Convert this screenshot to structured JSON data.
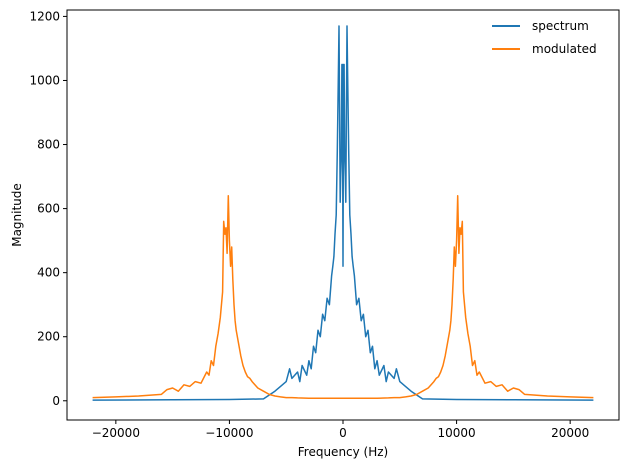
{
  "chart_data": {
    "type": "line",
    "title": "",
    "xlabel": "Frequency (Hz)",
    "ylabel": "Magnitude",
    "xlim": [
      -24300,
      24300
    ],
    "ylim": [
      -60,
      1220
    ],
    "xticks": [
      -20000,
      -10000,
      0,
      10000,
      20000
    ],
    "yticks": [
      0,
      200,
      400,
      600,
      800,
      1000,
      1200
    ],
    "grid": false,
    "legend": "top-right",
    "series": [
      {
        "name": "spectrum",
        "color": "#1f77b4",
        "x": [
          -22050,
          -15000,
          -10000,
          -7000,
          -6000,
          -5500,
          -5000,
          -4700,
          -4500,
          -4000,
          -3800,
          -3600,
          -3200,
          -3000,
          -2800,
          -2600,
          -2400,
          -2200,
          -2000,
          -1800,
          -1600,
          -1400,
          -1200,
          -1000,
          -900,
          -800,
          -700,
          -600,
          -500,
          -400,
          -350,
          -300,
          -250,
          -200,
          -150,
          -100,
          -50,
          0,
          50,
          100,
          150,
          200,
          250,
          300,
          350,
          400,
          500,
          600,
          700,
          800,
          900,
          1000,
          1200,
          1400,
          1600,
          1800,
          2000,
          2200,
          2400,
          2600,
          2800,
          3000,
          3200,
          3600,
          3800,
          4000,
          4500,
          4700,
          5000,
          5500,
          6000,
          7000,
          10000,
          15000,
          22050
        ],
        "y": [
          2,
          3,
          4,
          6,
          30,
          45,
          60,
          100,
          70,
          90,
          60,
          110,
          80,
          125,
          100,
          170,
          150,
          220,
          200,
          270,
          250,
          320,
          300,
          390,
          420,
          450,
          520,
          580,
          780,
          1050,
          1170,
          900,
          620,
          700,
          760,
          1050,
          1050,
          420,
          1050,
          1050,
          760,
          700,
          620,
          900,
          1170,
          1050,
          780,
          580,
          520,
          450,
          420,
          390,
          300,
          320,
          250,
          270,
          200,
          220,
          150,
          170,
          100,
          125,
          80,
          110,
          60,
          90,
          70,
          100,
          60,
          45,
          30,
          6,
          4,
          3,
          2
        ]
      },
      {
        "name": "modulated",
        "color": "#ff7f0e",
        "x": [
          -22050,
          -20000,
          -18000,
          -16000,
          -15500,
          -15000,
          -14500,
          -14000,
          -13500,
          -13000,
          -12500,
          -12000,
          -11800,
          -11600,
          -11400,
          -11200,
          -11000,
          -10800,
          -10600,
          -10500,
          -10400,
          -10300,
          -10200,
          -10100,
          -10000,
          -9900,
          -9800,
          -9700,
          -9600,
          -9500,
          -9400,
          -9200,
          -9000,
          -8800,
          -8600,
          -8400,
          -8200,
          -8000,
          -7500,
          -7000,
          -6500,
          -6000,
          -5500,
          -5000,
          -4500,
          -4000,
          -3000,
          -2000,
          -1000,
          0,
          1000,
          2000,
          3000,
          4000,
          4500,
          5000,
          5500,
          6000,
          6500,
          7000,
          7500,
          8000,
          8200,
          8400,
          8600,
          8800,
          9000,
          9200,
          9400,
          9500,
          9600,
          9700,
          9800,
          9900,
          10000,
          10100,
          10200,
          10300,
          10400,
          10500,
          10600,
          10800,
          11000,
          11200,
          11400,
          11600,
          11800,
          12000,
          12500,
          13000,
          13500,
          14000,
          14500,
          15000,
          15500,
          16000,
          18000,
          20000,
          22050
        ],
        "y": [
          10,
          12,
          15,
          20,
          35,
          40,
          30,
          50,
          45,
          60,
          55,
          90,
          80,
          125,
          110,
          170,
          210,
          260,
          340,
          560,
          520,
          540,
          460,
          640,
          500,
          420,
          480,
          380,
          300,
          250,
          220,
          180,
          140,
          110,
          90,
          75,
          70,
          60,
          40,
          30,
          20,
          15,
          12,
          10,
          10,
          9,
          8,
          8,
          8,
          8,
          8,
          8,
          8,
          9,
          10,
          10,
          12,
          15,
          20,
          30,
          40,
          60,
          70,
          75,
          90,
          110,
          140,
          180,
          220,
          250,
          300,
          380,
          480,
          420,
          500,
          640,
          460,
          540,
          520,
          560,
          340,
          260,
          210,
          170,
          110,
          125,
          80,
          90,
          55,
          60,
          45,
          50,
          30,
          40,
          35,
          20,
          15,
          12,
          10
        ]
      }
    ]
  }
}
